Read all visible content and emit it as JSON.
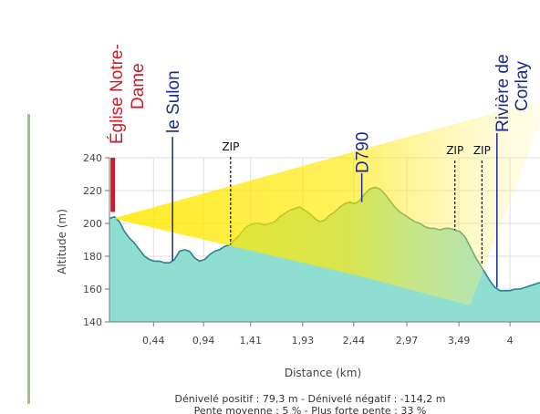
{
  "chart_data": {
    "type": "area",
    "xlabel": "Distance (km)",
    "ylabel": "Altitude (m)",
    "xlim": [
      0,
      4.3
    ],
    "ylim": [
      140,
      240
    ],
    "xticks": [
      0.44,
      0.94,
      1.41,
      1.93,
      2.44,
      2.97,
      3.49,
      4
    ],
    "xtick_labels": [
      "0,44",
      "0,94",
      "1,41",
      "1,93",
      "2,44",
      "2,97",
      "3,49",
      "4"
    ],
    "yticks": [
      140,
      160,
      180,
      200,
      220,
      240
    ],
    "grid": true,
    "colors": {
      "area": "#8fded2",
      "outline": "#2f7f8c",
      "beam": "#ffe800",
      "grid": "#dddddd"
    },
    "x": [
      0.0,
      0.05,
      0.1,
      0.15,
      0.2,
      0.25,
      0.3,
      0.35,
      0.4,
      0.45,
      0.5,
      0.55,
      0.6,
      0.65,
      0.7,
      0.75,
      0.8,
      0.85,
      0.9,
      0.95,
      1.0,
      1.05,
      1.1,
      1.15,
      1.2,
      1.25,
      1.3,
      1.35,
      1.4,
      1.45,
      1.5,
      1.55,
      1.6,
      1.65,
      1.7,
      1.75,
      1.8,
      1.85,
      1.9,
      1.95,
      2.0,
      2.05,
      2.1,
      2.15,
      2.2,
      2.25,
      2.3,
      2.35,
      2.4,
      2.45,
      2.5,
      2.55,
      2.6,
      2.65,
      2.7,
      2.75,
      2.8,
      2.85,
      2.9,
      2.95,
      3.0,
      3.05,
      3.1,
      3.15,
      3.2,
      3.25,
      3.3,
      3.35,
      3.4,
      3.45,
      3.5,
      3.55,
      3.6,
      3.65,
      3.7,
      3.75,
      3.8,
      3.85,
      3.9,
      3.95,
      4.0,
      4.05,
      4.1,
      4.15,
      4.2,
      4.25,
      4.3
    ],
    "y": [
      203,
      204,
      201,
      195,
      191,
      188,
      184,
      180,
      178,
      177,
      177,
      176,
      176,
      178,
      183,
      184,
      183,
      179,
      177,
      178,
      181,
      183,
      184,
      186,
      187,
      190,
      193,
      197,
      199,
      200,
      200,
      199,
      200,
      201,
      204,
      206,
      208,
      209,
      210,
      208,
      206,
      203,
      201,
      202,
      205,
      207,
      210,
      212,
      213,
      212,
      214,
      218,
      221,
      222,
      221,
      218,
      214,
      210,
      207,
      205,
      203,
      201,
      200,
      198,
      197,
      197,
      196,
      197,
      197,
      196,
      195,
      192,
      186,
      180,
      175,
      170,
      165,
      161,
      159,
      159,
      159,
      160,
      160,
      161,
      162,
      163,
      164
    ],
    "markers": [
      {
        "label": "Église Notre-Dame",
        "x": 0.02,
        "color": "#cc1b2a"
      },
      {
        "label": "le Sulon",
        "x": 0.63,
        "color": "#1c2a8c"
      },
      {
        "label": "D790",
        "x": 2.52,
        "color": "#1c2a8c"
      },
      {
        "label": "Rivière de Corlay",
        "x": 3.87,
        "color": "#1c2a8c"
      }
    ],
    "zips": [
      {
        "label": "ZIP",
        "x": 1.21
      },
      {
        "label": "ZIP",
        "x": 3.45
      },
      {
        "label": "ZIP",
        "x": 3.72
      }
    ],
    "footer": [
      "Dénivelé positif : 79,3 m - Dénivelé négatif : -114,2 m",
      "Pente moyenne : 5 % - Plus forte pente : 33 %"
    ]
  }
}
